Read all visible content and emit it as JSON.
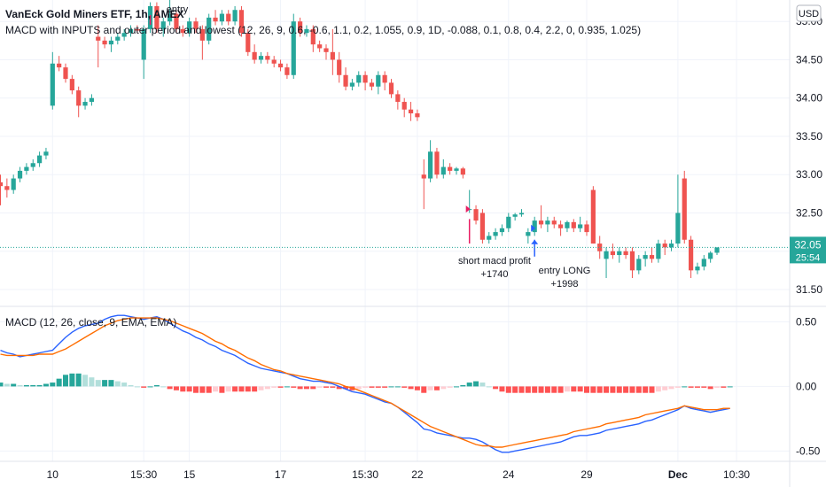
{
  "header": {
    "symbol_title": "VanEck Gold Miners ETF, 1h, AMEX",
    "indicator_title": "MACD with INPUTS and outer period and lowest (12, 26, 9, 0.6, -0.6, 1.1, 0.2, 1.055, 0.9, 1D, -0.088, 0.1, 0.8, 0.4, 2.2, 0, 0.935, 1.025)",
    "currency_badge": "USD"
  },
  "price_label": {
    "price": "32.05",
    "countdown": "25:54"
  },
  "macd_panel": {
    "title": "MACD (12, 26, close, 9, EMA, EMA)"
  },
  "annotations": {
    "entry_top": "entry",
    "short_line1": "short macd profit",
    "short_line2": "+1740",
    "long_line1": "entry LONG",
    "long_line2": "+1998"
  },
  "colors": {
    "up": "#26a69a",
    "down": "#ef5350",
    "macd_line": "#2962ff",
    "signal_line": "#ff6d00",
    "hist_up_strong": "#26a69a",
    "hist_up_weak": "#b2dfdb",
    "hist_down_strong": "#ff5252",
    "hist_down_weak": "#ffcdd2",
    "marker_short": "#e91e63",
    "marker_long": "#2962ff"
  },
  "chart_data": [
    {
      "type": "candlestick",
      "y_ticks": [
        "35.00",
        "34.50",
        "34.00",
        "33.50",
        "33.00",
        "32.50",
        "32.00",
        "31.50"
      ],
      "y_tick_values": [
        35.0,
        34.5,
        34.0,
        33.5,
        33.0,
        32.5,
        32.0,
        31.5
      ],
      "ylim": [
        31.28,
        35.28
      ],
      "x_ticks": [
        "10",
        "15:30",
        "15",
        "17",
        "15:30",
        "22",
        "24",
        "29",
        "Dec",
        "10:30"
      ],
      "x_tick_index": [
        8,
        22,
        29,
        43,
        56,
        64,
        78,
        90,
        104,
        113
      ],
      "last_price": 32.05,
      "ohlc": [
        [
          32.9,
          33.0,
          32.6,
          32.85
        ],
        [
          32.85,
          32.95,
          32.7,
          32.8
        ],
        [
          32.8,
          33.0,
          32.75,
          32.95
        ],
        [
          32.95,
          33.1,
          32.9,
          33.05
        ],
        [
          33.05,
          33.15,
          33.0,
          33.1
        ],
        [
          33.1,
          33.2,
          33.05,
          33.15
        ],
        [
          33.15,
          33.3,
          33.1,
          33.25
        ],
        [
          33.25,
          33.35,
          33.2,
          33.3
        ],
        [
          33.9,
          34.6,
          33.85,
          34.45
        ],
        [
          34.45,
          34.55,
          34.35,
          34.4
        ],
        [
          34.4,
          34.45,
          34.2,
          34.25
        ],
        [
          34.25,
          34.3,
          34.05,
          34.1
        ],
        [
          34.1,
          34.15,
          33.75,
          33.9
        ],
        [
          33.9,
          34.0,
          33.85,
          33.95
        ],
        [
          33.95,
          34.05,
          33.9,
          34.0
        ],
        [
          34.8,
          34.95,
          34.4,
          34.75
        ],
        [
          34.75,
          34.8,
          34.65,
          34.7
        ],
        [
          34.7,
          34.8,
          34.6,
          34.75
        ],
        [
          34.75,
          34.85,
          34.7,
          34.8
        ],
        [
          34.8,
          34.9,
          34.75,
          34.85
        ],
        [
          34.85,
          34.95,
          34.8,
          34.9
        ],
        [
          34.9,
          34.95,
          34.85,
          34.88
        ],
        [
          34.5,
          34.95,
          34.25,
          34.9
        ],
        [
          34.9,
          35.25,
          34.85,
          35.2
        ],
        [
          35.2,
          35.25,
          34.85,
          34.9
        ],
        [
          34.9,
          35.05,
          34.8,
          35.0
        ],
        [
          35.0,
          35.3,
          34.95,
          35.1
        ],
        [
          35.1,
          35.15,
          34.85,
          34.9
        ],
        [
          34.9,
          34.95,
          34.8,
          34.85
        ],
        [
          34.85,
          35.05,
          34.8,
          35.0
        ],
        [
          35.0,
          35.05,
          34.85,
          34.9
        ],
        [
          34.9,
          34.95,
          34.5,
          34.75
        ],
        [
          34.75,
          35.1,
          34.7,
          35.05
        ],
        [
          35.05,
          35.15,
          34.95,
          35.0
        ],
        [
          35.0,
          35.15,
          34.95,
          35.1
        ],
        [
          35.1,
          35.15,
          34.95,
          35.0
        ],
        [
          35.0,
          35.2,
          34.95,
          35.15
        ],
        [
          35.15,
          35.2,
          34.8,
          34.85
        ],
        [
          34.85,
          34.9,
          34.55,
          34.6
        ],
        [
          34.6,
          34.7,
          34.45,
          34.5
        ],
        [
          34.5,
          34.6,
          34.45,
          34.55
        ],
        [
          34.55,
          34.6,
          34.45,
          34.5
        ],
        [
          34.5,
          34.55,
          34.4,
          34.45
        ],
        [
          34.45,
          34.5,
          34.35,
          34.4
        ],
        [
          34.4,
          34.45,
          34.25,
          34.3
        ],
        [
          34.3,
          35.1,
          34.25,
          35.0
        ],
        [
          35.0,
          35.05,
          34.8,
          34.85
        ],
        [
          34.85,
          34.95,
          34.8,
          34.9
        ],
        [
          34.9,
          34.95,
          34.6,
          34.7
        ],
        [
          34.7,
          34.75,
          34.6,
          34.65
        ],
        [
          34.65,
          34.7,
          34.5,
          34.6
        ],
        [
          34.6,
          34.9,
          34.3,
          34.5
        ],
        [
          34.5,
          34.6,
          34.2,
          34.3
        ],
        [
          34.3,
          34.4,
          34.1,
          34.15
        ],
        [
          34.15,
          34.25,
          34.1,
          34.2
        ],
        [
          34.2,
          34.35,
          34.15,
          34.3
        ],
        [
          34.3,
          34.35,
          34.1,
          34.2
        ],
        [
          34.2,
          34.25,
          34.1,
          34.15
        ],
        [
          34.15,
          34.35,
          34.05,
          34.3
        ],
        [
          34.3,
          34.35,
          34.1,
          34.2
        ],
        [
          34.2,
          34.25,
          34.0,
          34.05
        ],
        [
          34.05,
          34.1,
          33.85,
          33.95
        ],
        [
          33.95,
          34.0,
          33.75,
          33.85
        ],
        [
          33.85,
          33.95,
          33.7,
          33.8
        ],
        [
          33.8,
          33.85,
          33.7,
          33.75
        ],
        [
          33.0,
          33.2,
          32.55,
          32.95
        ],
        [
          32.95,
          33.45,
          32.9,
          33.3
        ],
        [
          33.3,
          33.35,
          32.95,
          33.0
        ],
        [
          33.0,
          33.2,
          32.95,
          33.1
        ],
        [
          33.1,
          33.15,
          33.0,
          33.05
        ],
        [
          33.05,
          33.1,
          33.0,
          33.08
        ],
        [
          33.08,
          33.1,
          32.95,
          33.0
        ],
        [
          32.55,
          32.8,
          32.5,
          32.55
        ],
        [
          32.55,
          32.6,
          32.35,
          32.4
        ],
        [
          32.5,
          32.55,
          32.1,
          32.15
        ],
        [
          32.15,
          32.25,
          32.1,
          32.2
        ],
        [
          32.2,
          32.3,
          32.15,
          32.25
        ],
        [
          32.25,
          32.35,
          32.2,
          32.3
        ],
        [
          32.3,
          32.5,
          32.25,
          32.45
        ],
        [
          32.45,
          32.5,
          32.4,
          32.48
        ],
        [
          32.48,
          32.55,
          32.45,
          32.5
        ],
        [
          32.2,
          32.3,
          32.1,
          32.25
        ],
        [
          32.25,
          32.45,
          32.2,
          32.4
        ],
        [
          32.4,
          32.6,
          32.3,
          32.35
        ],
        [
          32.35,
          32.45,
          32.25,
          32.4
        ],
        [
          32.4,
          32.45,
          32.3,
          32.35
        ],
        [
          32.35,
          32.4,
          32.2,
          32.3
        ],
        [
          32.3,
          32.4,
          32.25,
          32.38
        ],
        [
          32.38,
          32.42,
          32.25,
          32.3
        ],
        [
          32.3,
          32.45,
          32.25,
          32.35
        ],
        [
          32.35,
          32.4,
          32.2,
          32.25
        ],
        [
          32.8,
          32.85,
          32.1,
          32.1
        ],
        [
          32.1,
          32.2,
          31.9,
          32.0
        ],
        [
          31.9,
          32.05,
          31.65,
          32.0
        ],
        [
          32.0,
          32.1,
          31.9,
          31.95
        ],
        [
          31.95,
          32.05,
          31.85,
          32.0
        ],
        [
          32.0,
          32.05,
          31.9,
          31.95
        ],
        [
          32.0,
          32.05,
          31.65,
          31.75
        ],
        [
          31.75,
          31.95,
          31.7,
          31.9
        ],
        [
          31.9,
          32.0,
          31.8,
          31.95
        ],
        [
          31.95,
          32.05,
          31.85,
          31.9
        ],
        [
          31.9,
          32.15,
          31.85,
          32.1
        ],
        [
          32.1,
          32.15,
          31.95,
          32.05
        ],
        [
          32.05,
          32.15,
          32.0,
          32.1
        ],
        [
          32.1,
          33.0,
          32.05,
          32.5
        ],
        [
          32.95,
          33.05,
          32.1,
          32.15
        ],
        [
          32.15,
          32.2,
          31.65,
          31.75
        ],
        [
          31.75,
          31.85,
          31.7,
          31.8
        ],
        [
          31.8,
          31.95,
          31.75,
          31.9
        ],
        [
          31.9,
          32.0,
          31.85,
          31.98
        ],
        [
          31.98,
          32.05,
          31.95,
          32.05
        ]
      ],
      "signals": [
        {
          "index": 23,
          "label": "entry"
        },
        {
          "index": 72,
          "label": "short macd profit +1740"
        },
        {
          "index": 82,
          "label": "entry LONG +1998"
        }
      ]
    },
    {
      "type": "macd",
      "y_ticks": [
        "0.50",
        "0.00",
        "-0.50"
      ],
      "y_tick_values": [
        0.5,
        0.0,
        -0.5
      ],
      "ylim": [
        -0.58,
        0.62
      ],
      "series": [
        {
          "name": "MACD",
          "values": [
            0.28,
            0.26,
            0.25,
            0.23,
            0.24,
            0.25,
            0.26,
            0.27,
            0.28,
            0.33,
            0.38,
            0.42,
            0.45,
            0.47,
            0.48,
            0.49,
            0.52,
            0.54,
            0.55,
            0.55,
            0.54,
            0.53,
            0.52,
            0.53,
            0.54,
            0.52,
            0.49,
            0.46,
            0.43,
            0.41,
            0.38,
            0.36,
            0.33,
            0.31,
            0.28,
            0.26,
            0.24,
            0.21,
            0.18,
            0.16,
            0.14,
            0.13,
            0.12,
            0.11,
            0.1,
            0.08,
            0.06,
            0.05,
            0.04,
            0.04,
            0.03,
            0.02,
            0.0,
            -0.02,
            -0.04,
            -0.05,
            -0.06,
            -0.08,
            -0.1,
            -0.12,
            -0.13,
            -0.16,
            -0.2,
            -0.24,
            -0.28,
            -0.33,
            -0.34,
            -0.36,
            -0.37,
            -0.38,
            -0.39,
            -0.4,
            -0.4,
            -0.41,
            -0.43,
            -0.46,
            -0.49,
            -0.51,
            -0.51,
            -0.5,
            -0.49,
            -0.48,
            -0.47,
            -0.46,
            -0.45,
            -0.44,
            -0.43,
            -0.41,
            -0.39,
            -0.38,
            -0.38,
            -0.37,
            -0.36,
            -0.34,
            -0.33,
            -0.32,
            -0.31,
            -0.3,
            -0.29,
            -0.27,
            -0.26,
            -0.24,
            -0.22,
            -0.2,
            -0.18,
            -0.15,
            -0.17,
            -0.18,
            -0.19,
            -0.2,
            -0.19,
            -0.18,
            -0.17
          ]
        },
        {
          "name": "Signal",
          "values": [
            0.25,
            0.24,
            0.24,
            0.24,
            0.24,
            0.24,
            0.25,
            0.25,
            0.25,
            0.27,
            0.29,
            0.32,
            0.35,
            0.38,
            0.41,
            0.44,
            0.47,
            0.49,
            0.51,
            0.52,
            0.53,
            0.53,
            0.53,
            0.53,
            0.53,
            0.52,
            0.51,
            0.49,
            0.47,
            0.45,
            0.43,
            0.41,
            0.38,
            0.35,
            0.33,
            0.3,
            0.28,
            0.25,
            0.22,
            0.2,
            0.17,
            0.15,
            0.13,
            0.12,
            0.1,
            0.09,
            0.08,
            0.07,
            0.06,
            0.05,
            0.04,
            0.03,
            0.02,
            0.0,
            -0.01,
            -0.03,
            -0.05,
            -0.07,
            -0.09,
            -0.11,
            -0.13,
            -0.16,
            -0.19,
            -0.22,
            -0.25,
            -0.28,
            -0.31,
            -0.33,
            -0.35,
            -0.37,
            -0.39,
            -0.41,
            -0.43,
            -0.45,
            -0.46,
            -0.46,
            -0.47,
            -0.47,
            -0.46,
            -0.45,
            -0.44,
            -0.43,
            -0.42,
            -0.41,
            -0.4,
            -0.39,
            -0.38,
            -0.37,
            -0.35,
            -0.34,
            -0.33,
            -0.32,
            -0.31,
            -0.29,
            -0.28,
            -0.27,
            -0.26,
            -0.25,
            -0.24,
            -0.22,
            -0.21,
            -0.2,
            -0.19,
            -0.18,
            -0.17,
            -0.15,
            -0.16,
            -0.17,
            -0.18,
            -0.18,
            -0.18,
            -0.17,
            -0.17
          ]
        },
        {
          "name": "Histogram",
          "values": [
            0.03,
            0.02,
            0.02,
            0.01,
            0.01,
            0.01,
            0.01,
            0.02,
            0.03,
            0.06,
            0.09,
            0.1,
            0.1,
            0.09,
            0.07,
            0.05,
            0.05,
            0.05,
            0.04,
            0.03,
            0.01,
            0.0,
            -0.01,
            0.0,
            0.01,
            0.0,
            -0.02,
            -0.03,
            -0.04,
            -0.04,
            -0.05,
            -0.05,
            -0.05,
            -0.04,
            -0.05,
            -0.04,
            -0.04,
            -0.04,
            -0.04,
            -0.04,
            -0.03,
            -0.02,
            -0.01,
            -0.01,
            0.0,
            -0.01,
            -0.02,
            -0.02,
            -0.02,
            -0.01,
            -0.01,
            -0.01,
            -0.02,
            -0.02,
            -0.03,
            -0.02,
            -0.01,
            -0.01,
            -0.01,
            -0.01,
            0.0,
            0.0,
            -0.01,
            -0.02,
            -0.03,
            -0.05,
            -0.03,
            -0.03,
            -0.02,
            -0.01,
            0.0,
            0.01,
            0.03,
            0.04,
            0.03,
            0.0,
            -0.02,
            -0.04,
            -0.05,
            -0.05,
            -0.05,
            -0.05,
            -0.05,
            -0.05,
            -0.05,
            -0.05,
            -0.05,
            -0.04,
            -0.04,
            -0.04,
            -0.05,
            -0.05,
            -0.05,
            -0.05,
            -0.05,
            -0.05,
            -0.05,
            -0.05,
            -0.05,
            -0.05,
            -0.05,
            -0.04,
            -0.03,
            -0.02,
            -0.01,
            0.0,
            -0.01,
            -0.01,
            -0.01,
            -0.02,
            -0.01,
            -0.01,
            0.0
          ]
        }
      ]
    }
  ]
}
